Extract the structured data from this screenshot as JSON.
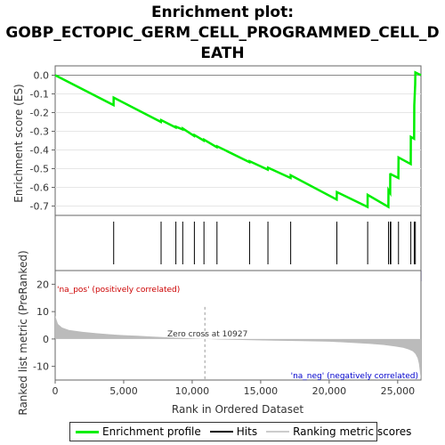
{
  "title_lines": [
    "Enrichment plot:",
    "GOBP_ECTOPIC_GERM_CELL_PROGRAMMED_CELL_D",
    "EATH"
  ],
  "colors": {
    "es_line": "#00ee00",
    "hit_line": "#000000",
    "ranked_fill": "#bbbbbb",
    "pos_label": "#cc0000",
    "neg_label": "#0000cc",
    "zero_cross_line": "#999999"
  },
  "chart_data": {
    "type": "line",
    "x_max": 26700,
    "es_panel": {
      "ylabel": "Enrichment score (ES)",
      "ylim": [
        -0.75,
        0.05
      ],
      "yticks": [
        0.0,
        -0.1,
        -0.2,
        -0.3,
        -0.4,
        -0.5,
        -0.6,
        -0.7
      ],
      "ytick_labels": [
        "0.0",
        "-0.1",
        "-0.2",
        "-0.3",
        "-0.4",
        "-0.5",
        "-0.6",
        "-0.7"
      ],
      "series": [
        {
          "name": "Enrichment profile",
          "x": [
            0,
            4260,
            4270,
            7720,
            7730,
            8800,
            8810,
            9300,
            9310,
            10150,
            10160,
            10850,
            10860,
            11800,
            11810,
            14180,
            14190,
            15520,
            15530,
            17180,
            17190,
            20550,
            20560,
            22800,
            22810,
            24320,
            24330,
            24450,
            24460,
            24490,
            24500,
            25050,
            25060,
            25950,
            25960,
            26200,
            26210,
            26280,
            26290,
            26700
          ],
          "y": [
            0.0,
            -0.16,
            -0.12,
            -0.25,
            -0.24,
            -0.28,
            -0.275,
            -0.29,
            -0.285,
            -0.325,
            -0.32,
            -0.35,
            -0.345,
            -0.385,
            -0.38,
            -0.465,
            -0.46,
            -0.505,
            -0.495,
            -0.55,
            -0.535,
            -0.665,
            -0.625,
            -0.705,
            -0.64,
            -0.705,
            -0.615,
            -0.63,
            -0.525,
            -0.53,
            -0.53,
            -0.55,
            -0.44,
            -0.475,
            -0.33,
            -0.34,
            -0.16,
            -0.05,
            0.015,
            0.0
          ]
        }
      ]
    },
    "hits": {
      "name": "Hits",
      "x": [
        4270,
        7730,
        8810,
        9310,
        10160,
        10860,
        11810,
        14190,
        15530,
        17190,
        20560,
        22810,
        24330,
        24460,
        24500,
        25060,
        25960,
        26210,
        26290
      ]
    },
    "ranked_list": {
      "ylabel": "Ranked list metric (PreRanked)",
      "xlabel": "Rank in Ordered Dataset",
      "ylim": [
        -15,
        25
      ],
      "yticks": [
        20,
        10,
        0,
        -10
      ],
      "ytick_labels": [
        "20",
        "10",
        "0",
        "-10"
      ],
      "xticks": [
        0,
        5000,
        10000,
        15000,
        20000,
        25000
      ],
      "xtick_labels": [
        "0",
        "5,000",
        "10,000",
        "15,000",
        "20,000",
        "25,000"
      ],
      "series_name": "Ranking metric scores",
      "x": [
        0,
        200,
        500,
        1000,
        2000,
        3000,
        4000,
        5000,
        6000,
        7000,
        8000,
        9000,
        10000,
        10927,
        12000,
        14000,
        16000,
        18000,
        20000,
        21000,
        22000,
        23000,
        24000,
        24800,
        25400,
        25800,
        26100,
        26300,
        26450,
        26550,
        26650,
        26700
      ],
      "y": [
        8.5,
        5.5,
        4.2,
        3.3,
        2.6,
        2.1,
        1.7,
        1.4,
        1.15,
        0.9,
        0.65,
        0.45,
        0.2,
        0.0,
        -0.2,
        -0.4,
        -0.6,
        -0.8,
        -1.0,
        -1.2,
        -1.5,
        -1.8,
        -2.2,
        -2.7,
        -3.2,
        -3.8,
        -4.5,
        -5.5,
        -7.0,
        -9.0,
        -13.0,
        -15.0
      ]
    },
    "heatmap_colors": [
      "#e8141e",
      "#ef3a42",
      "#f35a62",
      "#f77a82",
      "#fa9aa2",
      "#fcbac2",
      "#fdd0dc",
      "#f0dcee",
      "#e2daf0",
      "#d4d4f4",
      "#c4c4f4",
      "#aaaaf2",
      "#8a88ec",
      "#6460e6",
      "#4a46dc",
      "#3a30d0",
      "#2a18c0"
    ],
    "annotations": {
      "pos": "'na_pos' (positively correlated)",
      "neg": "'na_neg' (negatively correlated)",
      "zero_cross": "Zero cross at 10927",
      "zero_cross_x": 10927
    }
  },
  "legend": {
    "items": [
      {
        "label": "Enrichment profile",
        "color": "#00ee00"
      },
      {
        "label": "Hits",
        "color": "#000000"
      },
      {
        "label": "Ranking metric scores",
        "color": "#cccccc"
      }
    ]
  }
}
